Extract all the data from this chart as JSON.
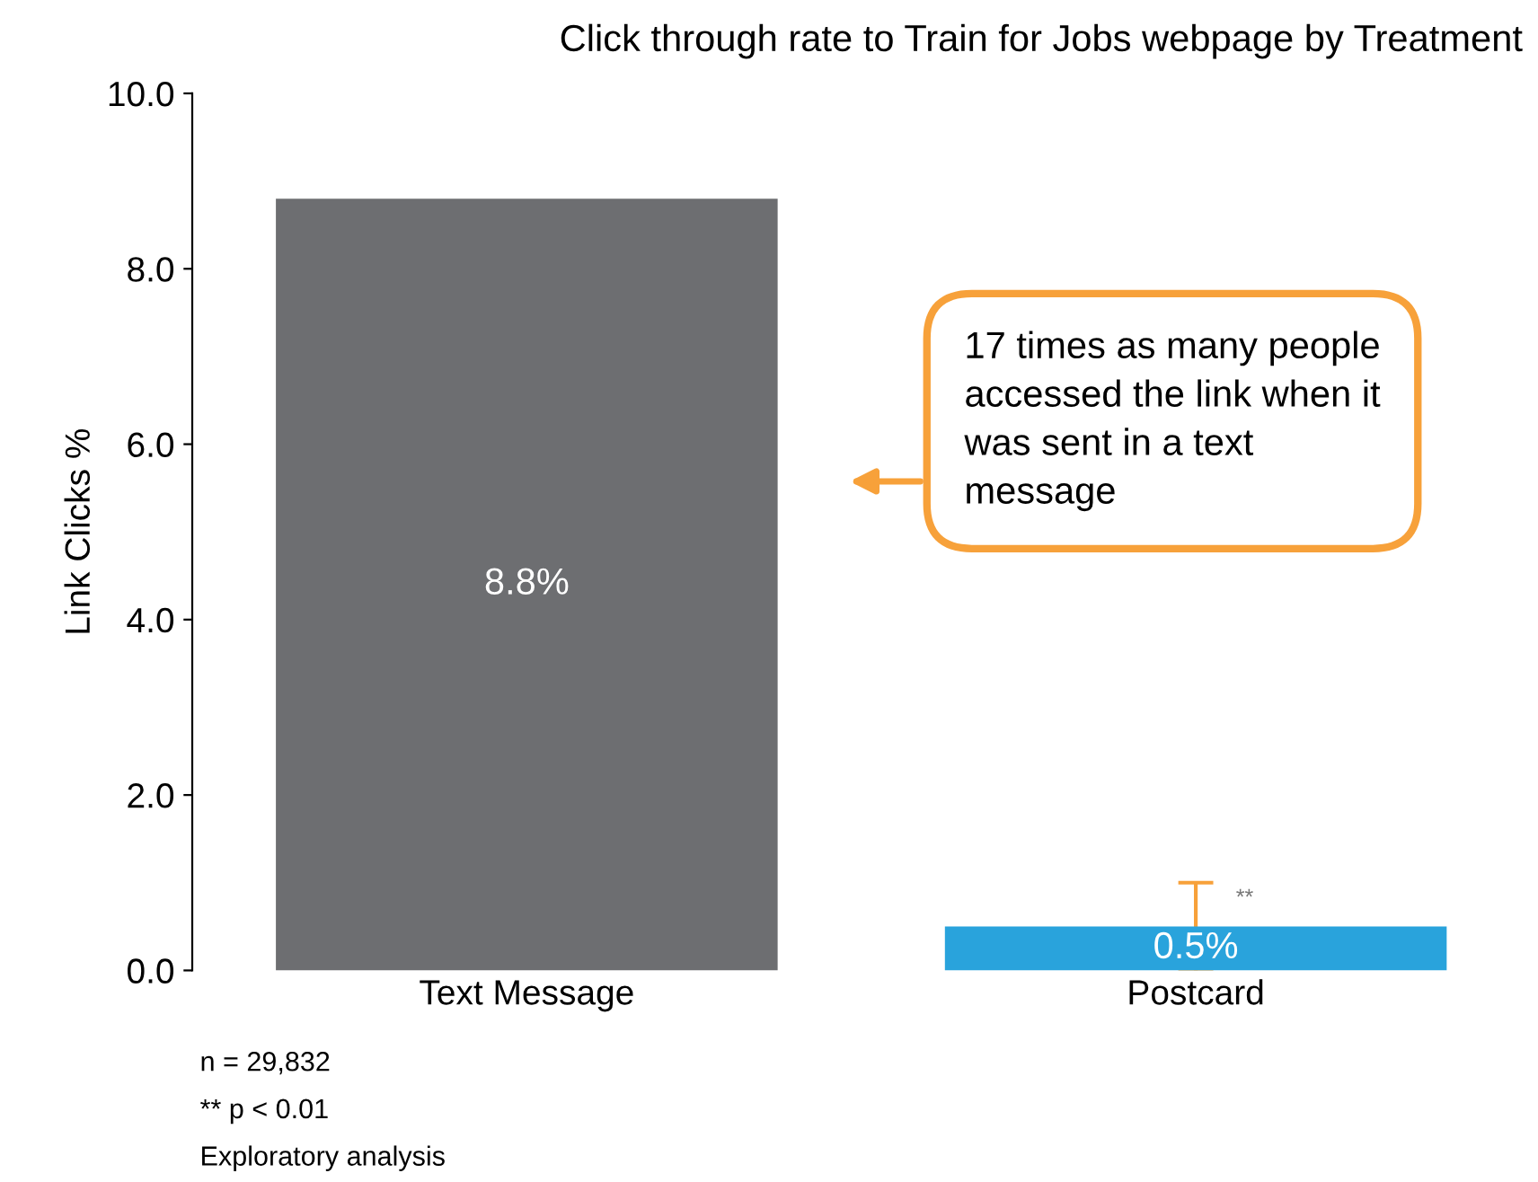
{
  "chart_data": {
    "type": "bar",
    "title": "Click through rate to Train for Jobs webpage by Treatment",
    "ylabel": "Link Clicks %",
    "categories": [
      "Text Message",
      "Postcard"
    ],
    "values": [
      8.8,
      0.5
    ],
    "colors": [
      "#6d6e71",
      "#29a3dc"
    ],
    "errors": [
      null,
      [
        0.0,
        1.0
      ]
    ],
    "value_labels": [
      "8.8%",
      "0.5%"
    ],
    "ylim": [
      0,
      10
    ],
    "yticks": [
      {
        "value": 0,
        "label": "0.0"
      },
      {
        "value": 2,
        "label": "2.0"
      },
      {
        "value": 4,
        "label": "4.0"
      },
      {
        "value": 6,
        "label": "6.0"
      },
      {
        "value": 8,
        "label": "8.0"
      },
      {
        "value": 10,
        "label": "10.0"
      }
    ],
    "grid": false,
    "annotations": [
      "17 times as many people accessed the link when it was sent in a text message",
      {
        "text": "**",
        "x": "Postcard",
        "y": 1.0
      },
      "n = 29,832",
      "** p < 0.01",
      "Exploratory analysis"
    ]
  }
}
